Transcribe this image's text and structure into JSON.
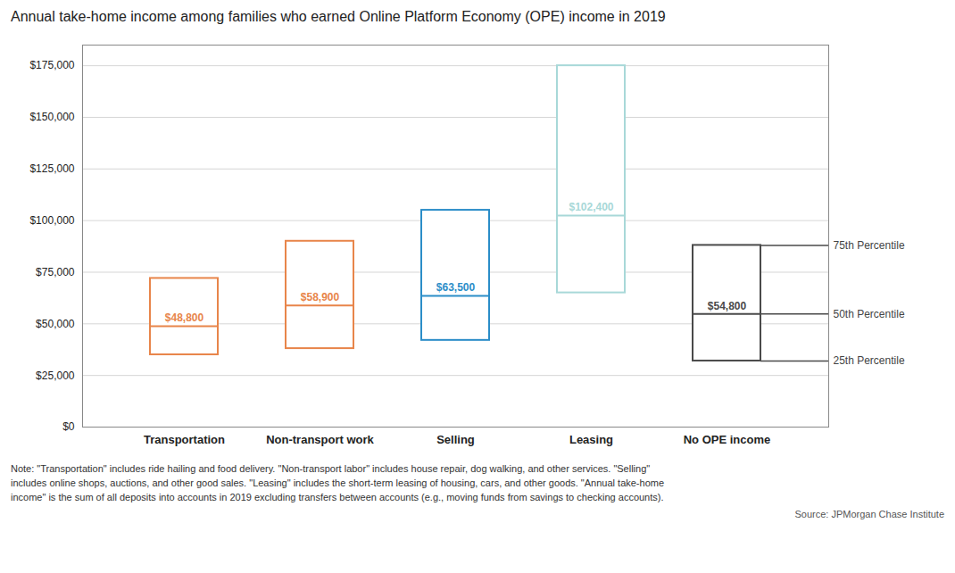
{
  "chart_data": {
    "type": "box",
    "title": "Annual take-home income among families who earned Online Platform Economy (OPE) income in 2019",
    "categories": [
      "Transportation",
      "Non-transport work",
      "Selling",
      "Leasing",
      "No OPE income"
    ],
    "series": [
      {
        "name": "25th Percentile",
        "values": [
          35000,
          38000,
          42000,
          65000,
          32000
        ]
      },
      {
        "name": "50th Percentile",
        "values": [
          48800,
          58900,
          63500,
          102400,
          54800
        ],
        "value_labels": [
          "$48,800",
          "$58,900",
          "$63,500",
          "$102,400",
          "$54,800"
        ]
      },
      {
        "name": "75th Percentile",
        "values": [
          72000,
          90000,
          105000,
          175000,
          88000
        ]
      }
    ],
    "colors": [
      "#E8854A",
      "#E8854A",
      "#2B8DC8",
      "#A8D8D8",
      "#4A4A4A"
    ],
    "ylim": [
      0,
      185000
    ],
    "yticks": [
      {
        "value": 0,
        "label": "$0"
      },
      {
        "value": 25000,
        "label": "$25,000"
      },
      {
        "value": 50000,
        "label": "$50,000"
      },
      {
        "value": 75000,
        "label": "$75,000"
      },
      {
        "value": 100000,
        "label": "$100,000"
      },
      {
        "value": 125000,
        "label": "$125,000"
      },
      {
        "value": 150000,
        "label": "$150,000"
      },
      {
        "value": 175000,
        "label": "$175,000"
      }
    ],
    "grid": true,
    "notes": [
      "Note: \"Transportation\" includes ride hailing and food delivery. \"Non-transport labor\" includes house repair, dog walking, and other services. \"Selling\"",
      "includes online shops, auctions, and other good sales. \"Leasing\" includes the short-term leasing of housing, cars, and other goods. \"Annual take-home",
      "income\" is the sum of all deposits into accounts in 2019 excluding transfers between accounts (e.g., moving funds from savings to checking accounts)."
    ],
    "source": "Source: JPMorgan Chase Institute"
  }
}
